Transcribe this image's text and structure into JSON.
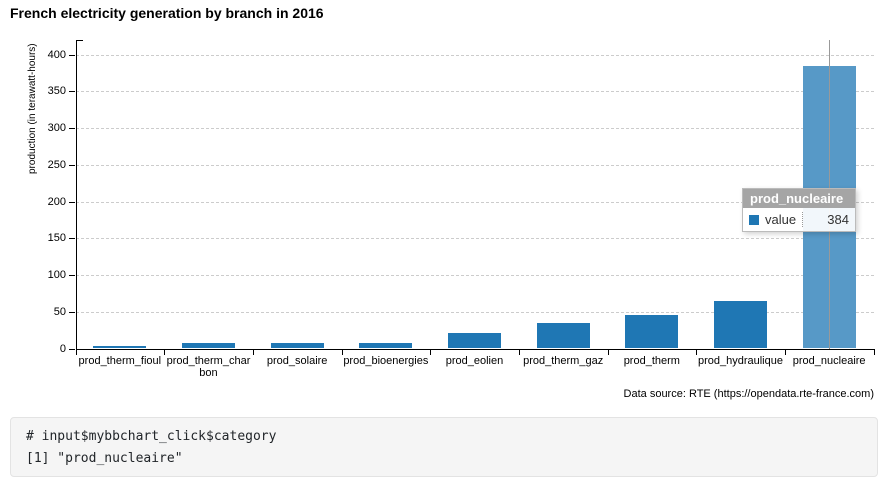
{
  "chart_data": {
    "type": "bar",
    "title": "French electricity generation by branch in 2016",
    "categories": [
      "prod_therm_fioul",
      "prod_therm_charbon",
      "prod_solaire",
      "prod_bioenergies",
      "prod_eolien",
      "prod_therm_gaz",
      "prod_therm",
      "prod_hydraulique",
      "prod_nucleaire"
    ],
    "series": [
      {
        "name": "value",
        "values": [
          3,
          7,
          8,
          8,
          21,
          35,
          46,
          64,
          384
        ]
      }
    ],
    "xlabel": "",
    "ylabel": "production (in terawatt-hours)",
    "ylim": [
      0,
      420
    ],
    "yticks": [
      0,
      50,
      100,
      150,
      200,
      250,
      300,
      350,
      400
    ],
    "grid": "horizontal-dashed",
    "legend": "none",
    "bar_color": "#1f77b4",
    "highlighted_category": "prod_nucleaire",
    "highlight_color": "#5799c7",
    "focus_line_color": "#999999",
    "source_note": "Data source: RTE (https://opendata.rte-france.com)"
  },
  "tooltip": {
    "title": "prod_nucleaire",
    "rows": [
      {
        "label": "value",
        "value": "384",
        "swatch_color": "#1f77b4"
      }
    ]
  },
  "console": {
    "lines": [
      "# input$mybbchart_click$category",
      "[1] \"prod_nucleaire\""
    ]
  }
}
